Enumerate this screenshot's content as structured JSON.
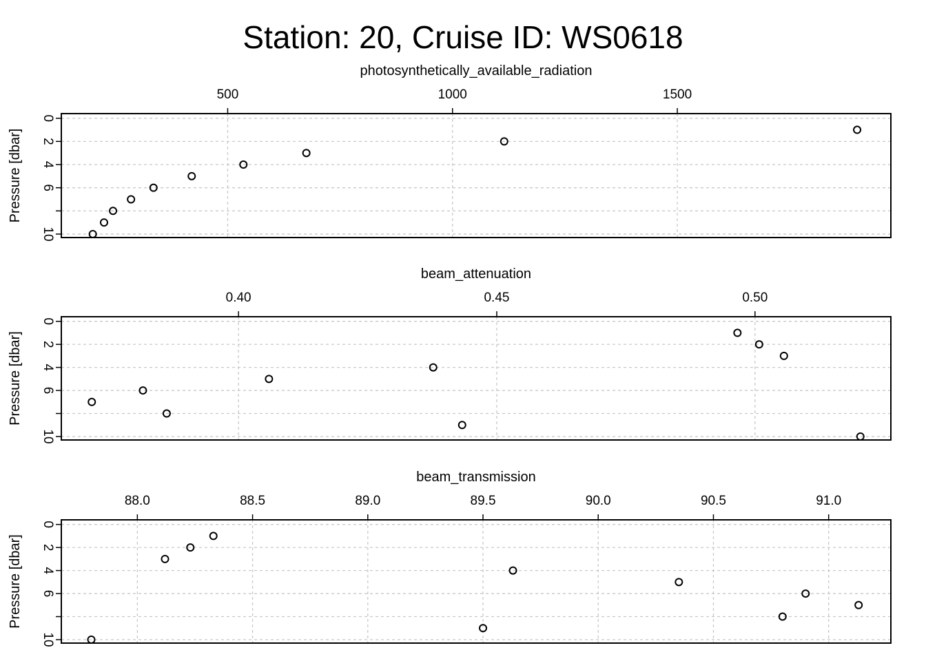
{
  "title": "Station: 20, Cruise ID: WS0618",
  "chart_data": [
    {
      "type": "scatter",
      "xlabel": "photosynthetically_available_radiation",
      "ylabel": "Pressure [dbar]",
      "xlim": [
        130,
        1975
      ],
      "ylim": [
        10.3,
        -0.4
      ],
      "xticks": [
        500,
        1000,
        1500
      ],
      "xtick_labels": [
        "500",
        "1000",
        "1500"
      ],
      "yticks": [
        0,
        2,
        4,
        6,
        8,
        10
      ],
      "ytick_labels": [
        "0",
        "2",
        "4",
        "6",
        "",
        "10"
      ],
      "grid": true,
      "points": [
        {
          "x": 1900,
          "y": 1
        },
        {
          "x": 1115,
          "y": 2
        },
        {
          "x": 675,
          "y": 3
        },
        {
          "x": 535,
          "y": 4
        },
        {
          "x": 420,
          "y": 5
        },
        {
          "x": 335,
          "y": 6
        },
        {
          "x": 285,
          "y": 7
        },
        {
          "x": 245,
          "y": 8
        },
        {
          "x": 225,
          "y": 9
        },
        {
          "x": 200,
          "y": 10
        }
      ]
    },
    {
      "type": "scatter",
      "xlabel": "beam_attenuation",
      "ylabel": "Pressure [dbar]",
      "xlim": [
        0.3657,
        0.5263
      ],
      "ylim": [
        10.3,
        -0.4
      ],
      "xticks": [
        0.4,
        0.45,
        0.5
      ],
      "xtick_labels": [
        "0.40",
        "0.45",
        "0.50"
      ],
      "yticks": [
        0,
        2,
        4,
        6,
        8,
        10
      ],
      "ytick_labels": [
        "0",
        "2",
        "4",
        "6",
        "",
        "10"
      ],
      "grid": true,
      "points": [
        {
          "x": 0.4966,
          "y": 1
        },
        {
          "x": 0.5008,
          "y": 2
        },
        {
          "x": 0.5056,
          "y": 3
        },
        {
          "x": 0.4377,
          "y": 4
        },
        {
          "x": 0.4059,
          "y": 5
        },
        {
          "x": 0.3815,
          "y": 6
        },
        {
          "x": 0.3716,
          "y": 7
        },
        {
          "x": 0.3861,
          "y": 8
        },
        {
          "x": 0.4433,
          "y": 9
        },
        {
          "x": 0.5204,
          "y": 10
        }
      ]
    },
    {
      "type": "scatter",
      "xlabel": "beam_transmission",
      "ylabel": "Pressure [dbar]",
      "xlim": [
        87.67,
        91.27
      ],
      "ylim": [
        10.3,
        -0.4
      ],
      "xticks": [
        88.0,
        88.5,
        89.0,
        89.5,
        90.0,
        90.5,
        91.0
      ],
      "xtick_labels": [
        "88.0",
        "88.5",
        "89.0",
        "89.5",
        "90.0",
        "90.5",
        "91.0"
      ],
      "yticks": [
        0,
        2,
        4,
        6,
        8,
        10
      ],
      "ytick_labels": [
        "0",
        "2",
        "4",
        "6",
        "",
        "10"
      ],
      "grid": true,
      "points": [
        {
          "x": 88.33,
          "y": 1
        },
        {
          "x": 88.23,
          "y": 2
        },
        {
          "x": 88.12,
          "y": 3
        },
        {
          "x": 89.63,
          "y": 4
        },
        {
          "x": 90.35,
          "y": 5
        },
        {
          "x": 90.9,
          "y": 6
        },
        {
          "x": 91.13,
          "y": 7
        },
        {
          "x": 90.8,
          "y": 8
        },
        {
          "x": 89.5,
          "y": 9
        },
        {
          "x": 87.8,
          "y": 10
        }
      ]
    }
  ]
}
